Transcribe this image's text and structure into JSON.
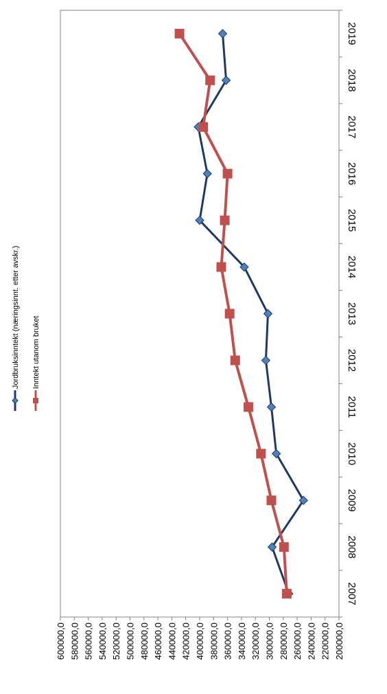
{
  "chart_data": {
    "type": "line",
    "orientation": "rotated-90",
    "x": [
      "2007",
      "2008",
      "2009",
      "2010",
      "2011",
      "2012",
      "2013",
      "2014",
      "2015",
      "2016",
      "2017",
      "2018",
      "2019"
    ],
    "ylim": [
      200000,
      600000
    ],
    "yticks": [
      "600000,0",
      "580000,0",
      "560000,0",
      "540000,0",
      "520000,0",
      "500000,0",
      "480000,0",
      "460000,0",
      "440000,0",
      "420000,0",
      "400000,0",
      "380000,0",
      "360000,0",
      "340000,0",
      "320000,0",
      "300000,0",
      "280000,0",
      "260000,0",
      "240000,0",
      "220000,0",
      "200000,0"
    ],
    "series": [
      {
        "name": "Jordbruksinntekt (næringsinnt. etter avskr.)",
        "color": "#1f3864",
        "marker": "diamond",
        "markerColor": "#4f81bd",
        "values": [
          272000,
          296000,
          251000,
          290000,
          297000,
          305000,
          302000,
          336000,
          400000,
          389000,
          402000,
          362000,
          367000
        ]
      },
      {
        "name": "Inntekt utanom bruket",
        "color": "#c0504d",
        "marker": "square",
        "markerColor": "#c0504d",
        "values": [
          275000,
          279000,
          297000,
          312000,
          330000,
          349000,
          357000,
          369000,
          364000,
          360000,
          395000,
          385000,
          429000
        ]
      }
    ],
    "grid": false,
    "legend": "top-left"
  }
}
